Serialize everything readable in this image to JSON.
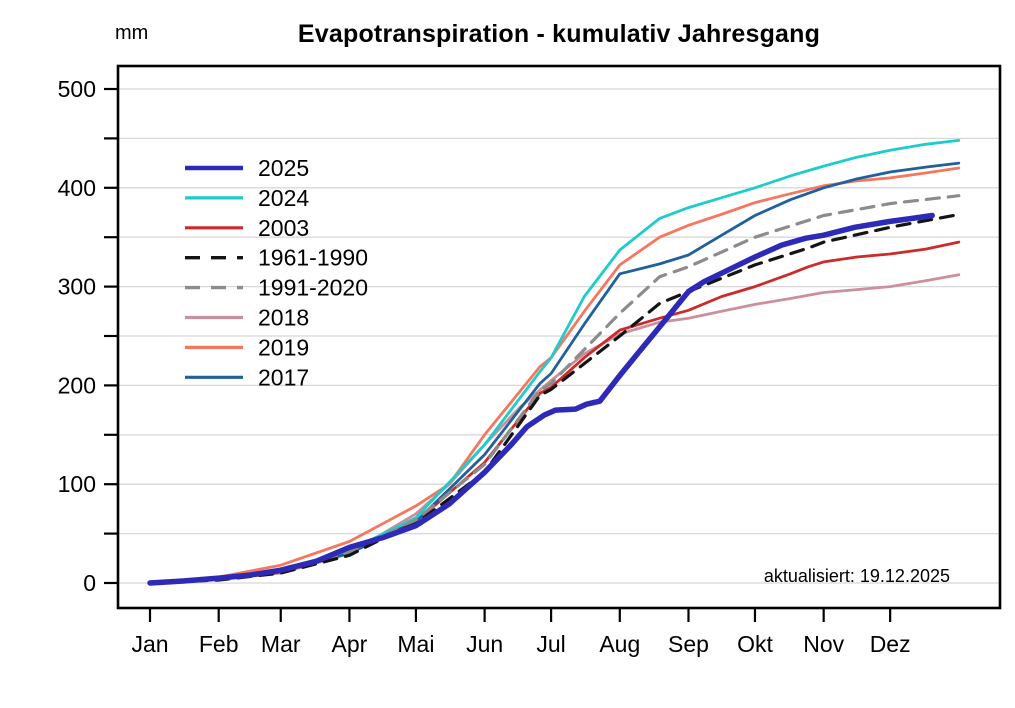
{
  "header": {
    "title": "Evapotranspiration - kumulativ Jahresgang",
    "unit_label": "mm",
    "update_note": "aktualisiert: 19.12.2025"
  },
  "chart_data": {
    "type": "line",
    "title": "Evapotranspiration - kumulativ Jahresgang",
    "ylabel": "mm",
    "annotation": "aktualisiert: 19.12.2025",
    "x_unit": "day of year",
    "month_labels": [
      "Jan",
      "Feb",
      "Mar",
      "Apr",
      "Mai",
      "Jun",
      "Jul",
      "Aug",
      "Sep",
      "Okt",
      "Nov",
      "Dez"
    ],
    "month_start_days": [
      0,
      31,
      59,
      90,
      120,
      151,
      181,
      212,
      243,
      273,
      304,
      334
    ],
    "ylim": [
      0,
      500
    ],
    "y_grid_step": 50,
    "y_tick_step": 50,
    "y_label_step": 100,
    "grid": true,
    "legend_position": "upper-left-inside",
    "axis_color": "#000000",
    "grid_color": "#d8d8d8",
    "series": [
      {
        "label": "2025",
        "color": "#2e2ab8",
        "dash": null,
        "width": 5.5,
        "z": 8,
        "points": [
          [
            0,
            0
          ],
          [
            15,
            2
          ],
          [
            31,
            5
          ],
          [
            45,
            8
          ],
          [
            59,
            13
          ],
          [
            75,
            22
          ],
          [
            90,
            36
          ],
          [
            105,
            46
          ],
          [
            120,
            58
          ],
          [
            135,
            80
          ],
          [
            151,
            112
          ],
          [
            163,
            140
          ],
          [
            170,
            158
          ],
          [
            178,
            170
          ],
          [
            183,
            175
          ],
          [
            192,
            176
          ],
          [
            197,
            181
          ],
          [
            203,
            184
          ],
          [
            212,
            210
          ],
          [
            220,
            232
          ],
          [
            231,
            262
          ],
          [
            243,
            295
          ],
          [
            250,
            305
          ],
          [
            262,
            318
          ],
          [
            273,
            330
          ],
          [
            285,
            342
          ],
          [
            296,
            349
          ],
          [
            304,
            352
          ],
          [
            318,
            360
          ],
          [
            334,
            366
          ],
          [
            344,
            369
          ],
          [
            353,
            372
          ]
        ]
      },
      {
        "label": "2024",
        "color": "#1fcccc",
        "dash": null,
        "width": 2.8,
        "z": 5,
        "points": [
          [
            0,
            0
          ],
          [
            31,
            4
          ],
          [
            59,
            13
          ],
          [
            90,
            33
          ],
          [
            120,
            66
          ],
          [
            151,
            140
          ],
          [
            176,
            214
          ],
          [
            181,
            228
          ],
          [
            196,
            290
          ],
          [
            212,
            337
          ],
          [
            230,
            369
          ],
          [
            243,
            380
          ],
          [
            258,
            390
          ],
          [
            273,
            400
          ],
          [
            289,
            412
          ],
          [
            304,
            422
          ],
          [
            319,
            431
          ],
          [
            334,
            438
          ],
          [
            350,
            444
          ],
          [
            365,
            448
          ]
        ]
      },
      {
        "label": "2003",
        "color": "#cc2b2b",
        "dash": null,
        "width": 2.8,
        "z": 3,
        "points": [
          [
            0,
            0
          ],
          [
            31,
            4
          ],
          [
            59,
            11
          ],
          [
            90,
            33
          ],
          [
            120,
            62
          ],
          [
            151,
            122
          ],
          [
            176,
            192
          ],
          [
            181,
            198
          ],
          [
            196,
            228
          ],
          [
            212,
            256
          ],
          [
            230,
            268
          ],
          [
            243,
            276
          ],
          [
            258,
            290
          ],
          [
            273,
            300
          ],
          [
            289,
            313
          ],
          [
            297,
            320
          ],
          [
            304,
            325
          ],
          [
            319,
            330
          ],
          [
            334,
            333
          ],
          [
            350,
            338
          ],
          [
            365,
            345
          ]
        ]
      },
      {
        "label": "1961-1990",
        "color": "#141414",
        "dash": "13 9",
        "width": 3.2,
        "z": 7,
        "points": [
          [
            0,
            0
          ],
          [
            31,
            3
          ],
          [
            59,
            10
          ],
          [
            90,
            28
          ],
          [
            113,
            54
          ],
          [
            120,
            60
          ],
          [
            151,
            112
          ],
          [
            176,
            190
          ],
          [
            181,
            196
          ],
          [
            212,
            250
          ],
          [
            230,
            283
          ],
          [
            243,
            295
          ],
          [
            273,
            322
          ],
          [
            297,
            339
          ],
          [
            304,
            345
          ],
          [
            334,
            360
          ],
          [
            365,
            373
          ]
        ]
      },
      {
        "label": "1991-2020",
        "color": "#8c8c8c",
        "dash": "13 9",
        "width": 3.2,
        "z": 6,
        "points": [
          [
            0,
            0
          ],
          [
            31,
            4
          ],
          [
            59,
            12
          ],
          [
            90,
            31
          ],
          [
            120,
            64
          ],
          [
            151,
            120
          ],
          [
            176,
            195
          ],
          [
            181,
            202
          ],
          [
            212,
            273
          ],
          [
            230,
            310
          ],
          [
            243,
            320
          ],
          [
            273,
            350
          ],
          [
            304,
            372
          ],
          [
            334,
            384
          ],
          [
            365,
            392
          ]
        ]
      },
      {
        "label": "2018",
        "color": "#cc8f9c",
        "dash": null,
        "width": 2.8,
        "z": 1,
        "points": [
          [
            0,
            0
          ],
          [
            31,
            4
          ],
          [
            59,
            10
          ],
          [
            90,
            30
          ],
          [
            120,
            70
          ],
          [
            135,
            100
          ],
          [
            151,
            140
          ],
          [
            167,
            178
          ],
          [
            181,
            205
          ],
          [
            196,
            232
          ],
          [
            212,
            252
          ],
          [
            230,
            264
          ],
          [
            243,
            268
          ],
          [
            258,
            275
          ],
          [
            273,
            282
          ],
          [
            289,
            288
          ],
          [
            304,
            294
          ],
          [
            319,
            297
          ],
          [
            334,
            300
          ],
          [
            350,
            306
          ],
          [
            365,
            312
          ]
        ]
      },
      {
        "label": "2019",
        "color": "#f5785e",
        "dash": null,
        "width": 2.8,
        "z": 2,
        "points": [
          [
            0,
            0
          ],
          [
            31,
            6
          ],
          [
            59,
            18
          ],
          [
            90,
            42
          ],
          [
            105,
            60
          ],
          [
            120,
            78
          ],
          [
            135,
            100
          ],
          [
            151,
            150
          ],
          [
            176,
            219
          ],
          [
            181,
            228
          ],
          [
            196,
            275
          ],
          [
            212,
            322
          ],
          [
            230,
            350
          ],
          [
            243,
            362
          ],
          [
            259,
            374
          ],
          [
            273,
            385
          ],
          [
            289,
            394
          ],
          [
            304,
            402
          ],
          [
            319,
            407
          ],
          [
            334,
            410
          ],
          [
            350,
            415
          ],
          [
            365,
            420
          ]
        ]
      },
      {
        "label": "2017",
        "color": "#20609c",
        "dash": null,
        "width": 2.8,
        "z": 4,
        "points": [
          [
            0,
            0
          ],
          [
            31,
            4
          ],
          [
            59,
            12
          ],
          [
            90,
            30
          ],
          [
            120,
            62
          ],
          [
            151,
            130
          ],
          [
            176,
            202
          ],
          [
            181,
            212
          ],
          [
            196,
            262
          ],
          [
            212,
            313
          ],
          [
            230,
            323
          ],
          [
            243,
            332
          ],
          [
            258,
            352
          ],
          [
            273,
            372
          ],
          [
            289,
            388
          ],
          [
            304,
            400
          ],
          [
            319,
            409
          ],
          [
            334,
            416
          ],
          [
            350,
            421
          ],
          [
            365,
            425
          ]
        ]
      }
    ]
  }
}
